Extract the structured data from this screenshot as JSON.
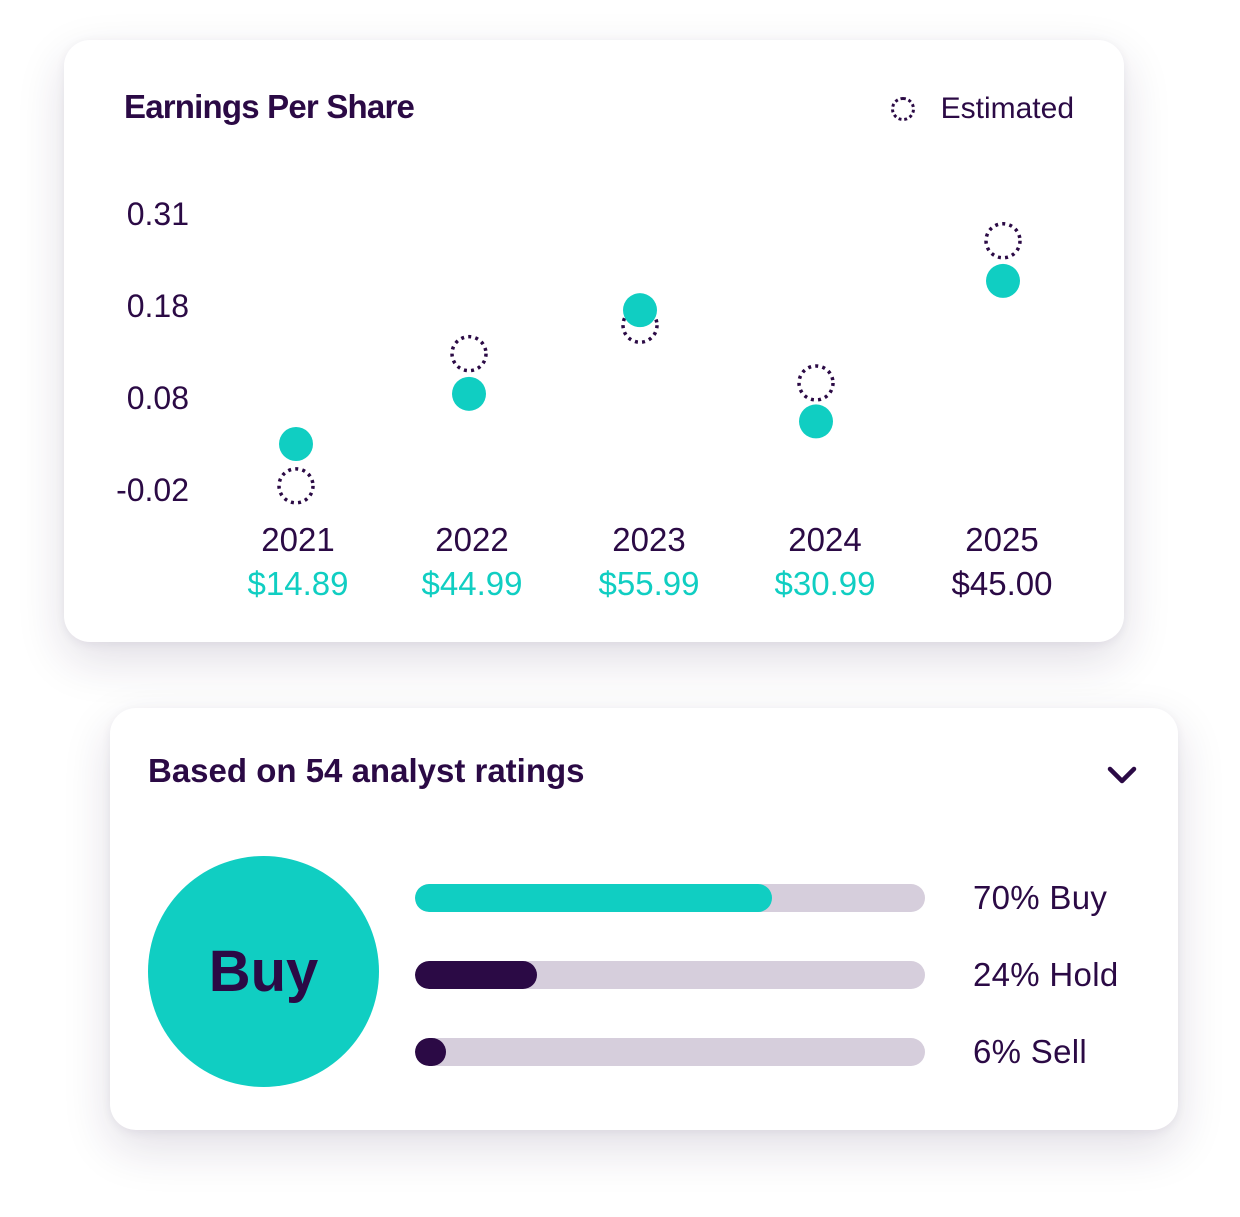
{
  "eps_card": {
    "title": "Earnings Per Share",
    "legend_label": "Estimated",
    "legend_icon": "dotted-circle-icon"
  },
  "chart_data": {
    "type": "scatter",
    "title": "Earnings Per Share",
    "y_ticks": [
      "0.31",
      "0.18",
      "0.08",
      "-0.02"
    ],
    "y_tick_values": [
      0.31,
      0.18,
      0.08,
      -0.02
    ],
    "categories": [
      "2021",
      "2022",
      "2023",
      "2024",
      "2025"
    ],
    "prices": [
      "$14.89",
      "$44.99",
      "$55.99",
      "$30.99",
      "$45.00"
    ],
    "series": [
      {
        "values": [
          0.035,
          0.095,
          0.195,
          0.062,
          0.23
        ]
      },
      {
        "name": "Estimated",
        "values": [
          -0.015,
          0.143,
          0.177,
          0.108,
          0.278
        ]
      }
    ],
    "legend_position": "top-right"
  },
  "colors": {
    "teal": "#10cec2",
    "navy": "#2b0a45",
    "track": "#d6cedc"
  },
  "ratings": {
    "title": "Based on 54 analyst ratings",
    "toggle_icon": "chevron-down-icon",
    "consensus": "Buy",
    "bars": [
      {
        "label": "70% Buy",
        "percent": 70
      },
      {
        "label": "24% Hold",
        "percent": 24
      },
      {
        "label": "6% Sell",
        "percent": 6
      }
    ]
  }
}
